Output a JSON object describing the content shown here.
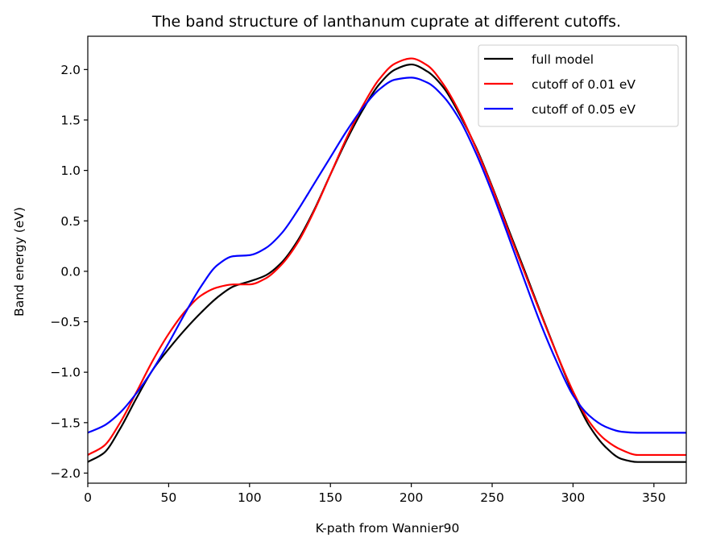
{
  "chart_data": {
    "type": "line",
    "title": "The band structure of lanthanum cuprate at different cutoffs.",
    "xlabel": "K-path from Wannier90",
    "ylabel": "Band energy (eV)",
    "xlim": [
      0,
      370
    ],
    "ylim": [
      -2.1,
      2.33
    ],
    "xticks": [
      0,
      50,
      100,
      150,
      200,
      250,
      300,
      350
    ],
    "yticks": [
      -2.0,
      -1.5,
      -1.0,
      -0.5,
      0.0,
      0.5,
      1.0,
      1.5,
      2.0
    ],
    "xtick_labels": [
      "0",
      "50",
      "100",
      "150",
      "200",
      "250",
      "300",
      "350"
    ],
    "ytick_labels": [
      "−2.0",
      "−1.5",
      "−1.0",
      "−0.5",
      "0.0",
      "0.5",
      "1.0",
      "1.5",
      "2.0"
    ],
    "grid": false,
    "legend_position": "top-right",
    "series": [
      {
        "name": "full model",
        "color": "#000000",
        "points": [
          [
            0,
            -1.89
          ],
          [
            10,
            -1.8
          ],
          [
            20,
            -1.56
          ],
          [
            30,
            -1.26
          ],
          [
            40,
            -0.98
          ],
          [
            50,
            -0.77
          ],
          [
            60,
            -0.58
          ],
          [
            70,
            -0.41
          ],
          [
            80,
            -0.26
          ],
          [
            90,
            -0.15
          ],
          [
            100,
            -0.1
          ],
          [
            110,
            -0.04
          ],
          [
            120,
            0.09
          ],
          [
            130,
            0.31
          ],
          [
            140,
            0.61
          ],
          [
            150,
            0.96
          ],
          [
            160,
            1.3
          ],
          [
            170,
            1.6
          ],
          [
            180,
            1.85
          ],
          [
            190,
            2.0
          ],
          [
            200,
            2.05
          ],
          [
            210,
            1.98
          ],
          [
            220,
            1.82
          ],
          [
            230,
            1.55
          ],
          [
            240,
            1.23
          ],
          [
            250,
            0.84
          ],
          [
            260,
            0.42
          ],
          [
            270,
            0.01
          ],
          [
            280,
            -0.41
          ],
          [
            290,
            -0.82
          ],
          [
            300,
            -1.21
          ],
          [
            310,
            -1.53
          ],
          [
            320,
            -1.74
          ],
          [
            330,
            -1.86
          ],
          [
            340,
            -1.89
          ],
          [
            350,
            -1.89
          ],
          [
            370,
            -1.89
          ]
        ]
      },
      {
        "name": "cutoff of 0.01 eV",
        "color": "#ff0000",
        "points": [
          [
            0,
            -1.82
          ],
          [
            10,
            -1.73
          ],
          [
            20,
            -1.5
          ],
          [
            30,
            -1.2
          ],
          [
            40,
            -0.89
          ],
          [
            50,
            -0.62
          ],
          [
            60,
            -0.4
          ],
          [
            70,
            -0.24
          ],
          [
            80,
            -0.16
          ],
          [
            90,
            -0.13
          ],
          [
            100,
            -0.13
          ],
          [
            110,
            -0.07
          ],
          [
            120,
            0.07
          ],
          [
            130,
            0.29
          ],
          [
            140,
            0.6
          ],
          [
            150,
            0.96
          ],
          [
            160,
            1.32
          ],
          [
            170,
            1.64
          ],
          [
            180,
            1.9
          ],
          [
            190,
            2.06
          ],
          [
            200,
            2.11
          ],
          [
            210,
            2.04
          ],
          [
            220,
            1.85
          ],
          [
            230,
            1.57
          ],
          [
            240,
            1.22
          ],
          [
            250,
            0.83
          ],
          [
            260,
            0.4
          ],
          [
            270,
            -0.01
          ],
          [
            280,
            -0.42
          ],
          [
            290,
            -0.82
          ],
          [
            300,
            -1.19
          ],
          [
            310,
            -1.49
          ],
          [
            320,
            -1.67
          ],
          [
            330,
            -1.77
          ],
          [
            340,
            -1.82
          ],
          [
            350,
            -1.82
          ],
          [
            370,
            -1.82
          ]
        ]
      },
      {
        "name": "cutoff of 0.05 eV",
        "color": "#0000ff",
        "points": [
          [
            0,
            -1.6
          ],
          [
            10,
            -1.53
          ],
          [
            20,
            -1.4
          ],
          [
            30,
            -1.21
          ],
          [
            40,
            -0.98
          ],
          [
            50,
            -0.71
          ],
          [
            60,
            -0.42
          ],
          [
            70,
            -0.15
          ],
          [
            80,
            0.06
          ],
          [
            90,
            0.15
          ],
          [
            100,
            0.16
          ],
          [
            110,
            0.23
          ],
          [
            120,
            0.38
          ],
          [
            130,
            0.61
          ],
          [
            140,
            0.87
          ],
          [
            150,
            1.13
          ],
          [
            160,
            1.39
          ],
          [
            170,
            1.62
          ],
          [
            180,
            1.8
          ],
          [
            190,
            1.9
          ],
          [
            200,
            1.92
          ],
          [
            210,
            1.87
          ],
          [
            220,
            1.73
          ],
          [
            230,
            1.5
          ],
          [
            240,
            1.17
          ],
          [
            250,
            0.78
          ],
          [
            260,
            0.35
          ],
          [
            270,
            -0.09
          ],
          [
            280,
            -0.52
          ],
          [
            290,
            -0.9
          ],
          [
            300,
            -1.23
          ],
          [
            310,
            -1.43
          ],
          [
            320,
            -1.54
          ],
          [
            330,
            -1.59
          ],
          [
            340,
            -1.6
          ],
          [
            350,
            -1.6
          ],
          [
            370,
            -1.6
          ]
        ]
      }
    ]
  }
}
